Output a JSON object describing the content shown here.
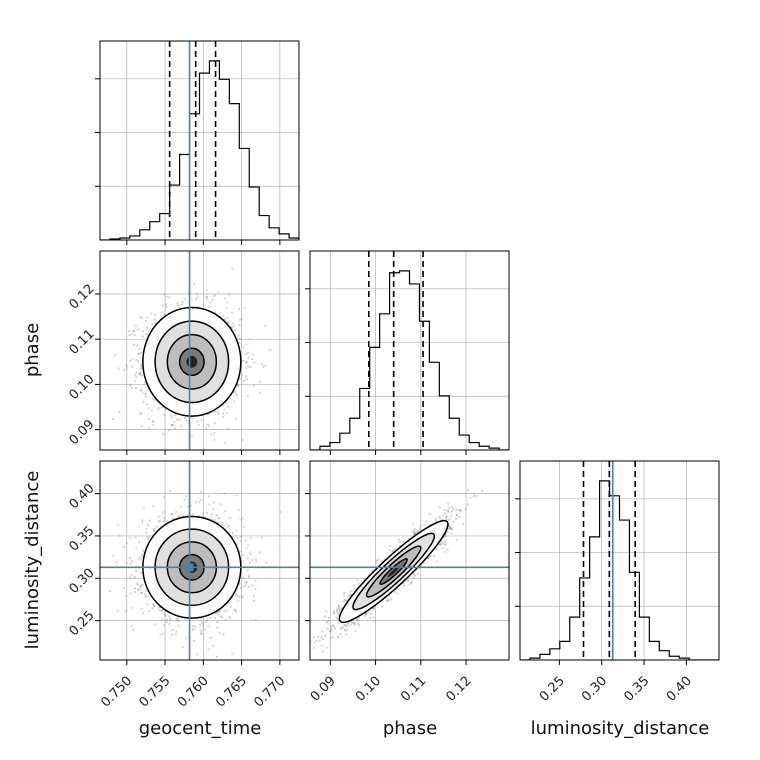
{
  "chart_data": {
    "type": "corner",
    "parameters": [
      "geocent_time",
      "phase",
      "luminosity_distance"
    ],
    "axis_labels": {
      "geocent_time": "geocent_time",
      "phase": "phase",
      "luminosity_distance": "luminosity_distance"
    },
    "ranges": {
      "geocent_time": [
        0.7465,
        0.7725
      ],
      "phase": [
        0.0855,
        0.1295
      ],
      "luminosity_distance": [
        0.2035,
        0.4385
      ]
    },
    "ticks": {
      "geocent_time": [
        0.75,
        0.755,
        0.76,
        0.765,
        0.77
      ],
      "phase": [
        0.09,
        0.1,
        0.11,
        0.12
      ],
      "luminosity_distance": [
        0.25,
        0.3,
        0.35,
        0.4
      ]
    },
    "tick_labels": {
      "geocent_time": [
        "0.750",
        "0.755",
        "0.760",
        "0.765",
        "0.770"
      ],
      "phase": [
        "0.09",
        "0.10",
        "0.11",
        "0.12"
      ],
      "luminosity_distance": [
        "0.25",
        "0.30",
        "0.35",
        "0.40"
      ]
    },
    "truths": {
      "geocent_time": 0.7582,
      "phase": null,
      "luminosity_distance": 0.313
    },
    "quantiles": {
      "geocent_time": [
        0.7556,
        0.759,
        0.7616
      ],
      "phase": [
        0.0985,
        0.104,
        0.1105
      ],
      "luminosity_distance": [
        0.2785,
        0.309,
        0.3395
      ]
    },
    "histograms": {
      "geocent_time": {
        "bin_start": 0.7465,
        "bin_width": 0.0013,
        "counts": [
          0,
          0.5,
          1,
          2,
          5,
          9,
          13,
          27,
          42,
          62,
          82,
          88,
          79,
          67,
          45,
          26,
          12,
          6,
          3,
          1,
          0
        ]
      },
      "phase": {
        "bin_start": 0.0855,
        "bin_width": 0.0022,
        "counts": [
          0,
          2,
          4,
          9,
          17,
          33,
          55,
          73,
          95,
          96,
          89,
          69,
          47,
          29,
          17,
          8,
          4,
          2,
          1,
          0
        ]
      },
      "luminosity_distance": {
        "bin_start": 0.2035,
        "bin_width": 0.01175,
        "counts": [
          0,
          1,
          3,
          6,
          10,
          23,
          44,
          66,
          96,
          88,
          75,
          47,
          23,
          10,
          5,
          2,
          1,
          0,
          0,
          0
        ]
      }
    },
    "scatter": {
      "phase_vs_geocent_time": {
        "mean": [
          0.7585,
          0.105
        ],
        "std": [
          0.0032,
          0.006
        ],
        "corr": 0.0
      },
      "luminosity_distance_vs_geocent_time": {
        "mean": [
          0.7585,
          0.313
        ],
        "std": [
          0.0032,
          0.03
        ],
        "corr": 0.0
      },
      "luminosity_distance_vs_phase": {
        "mean": [
          0.104,
          0.308
        ],
        "std": [
          0.006,
          0.03
        ],
        "corr": 0.93
      }
    },
    "grid": true,
    "colors": {
      "hist": "#000000",
      "quantile": "#000000",
      "truth": "#4682b4",
      "grid": "#b0b0b0",
      "points": "#808080"
    }
  }
}
